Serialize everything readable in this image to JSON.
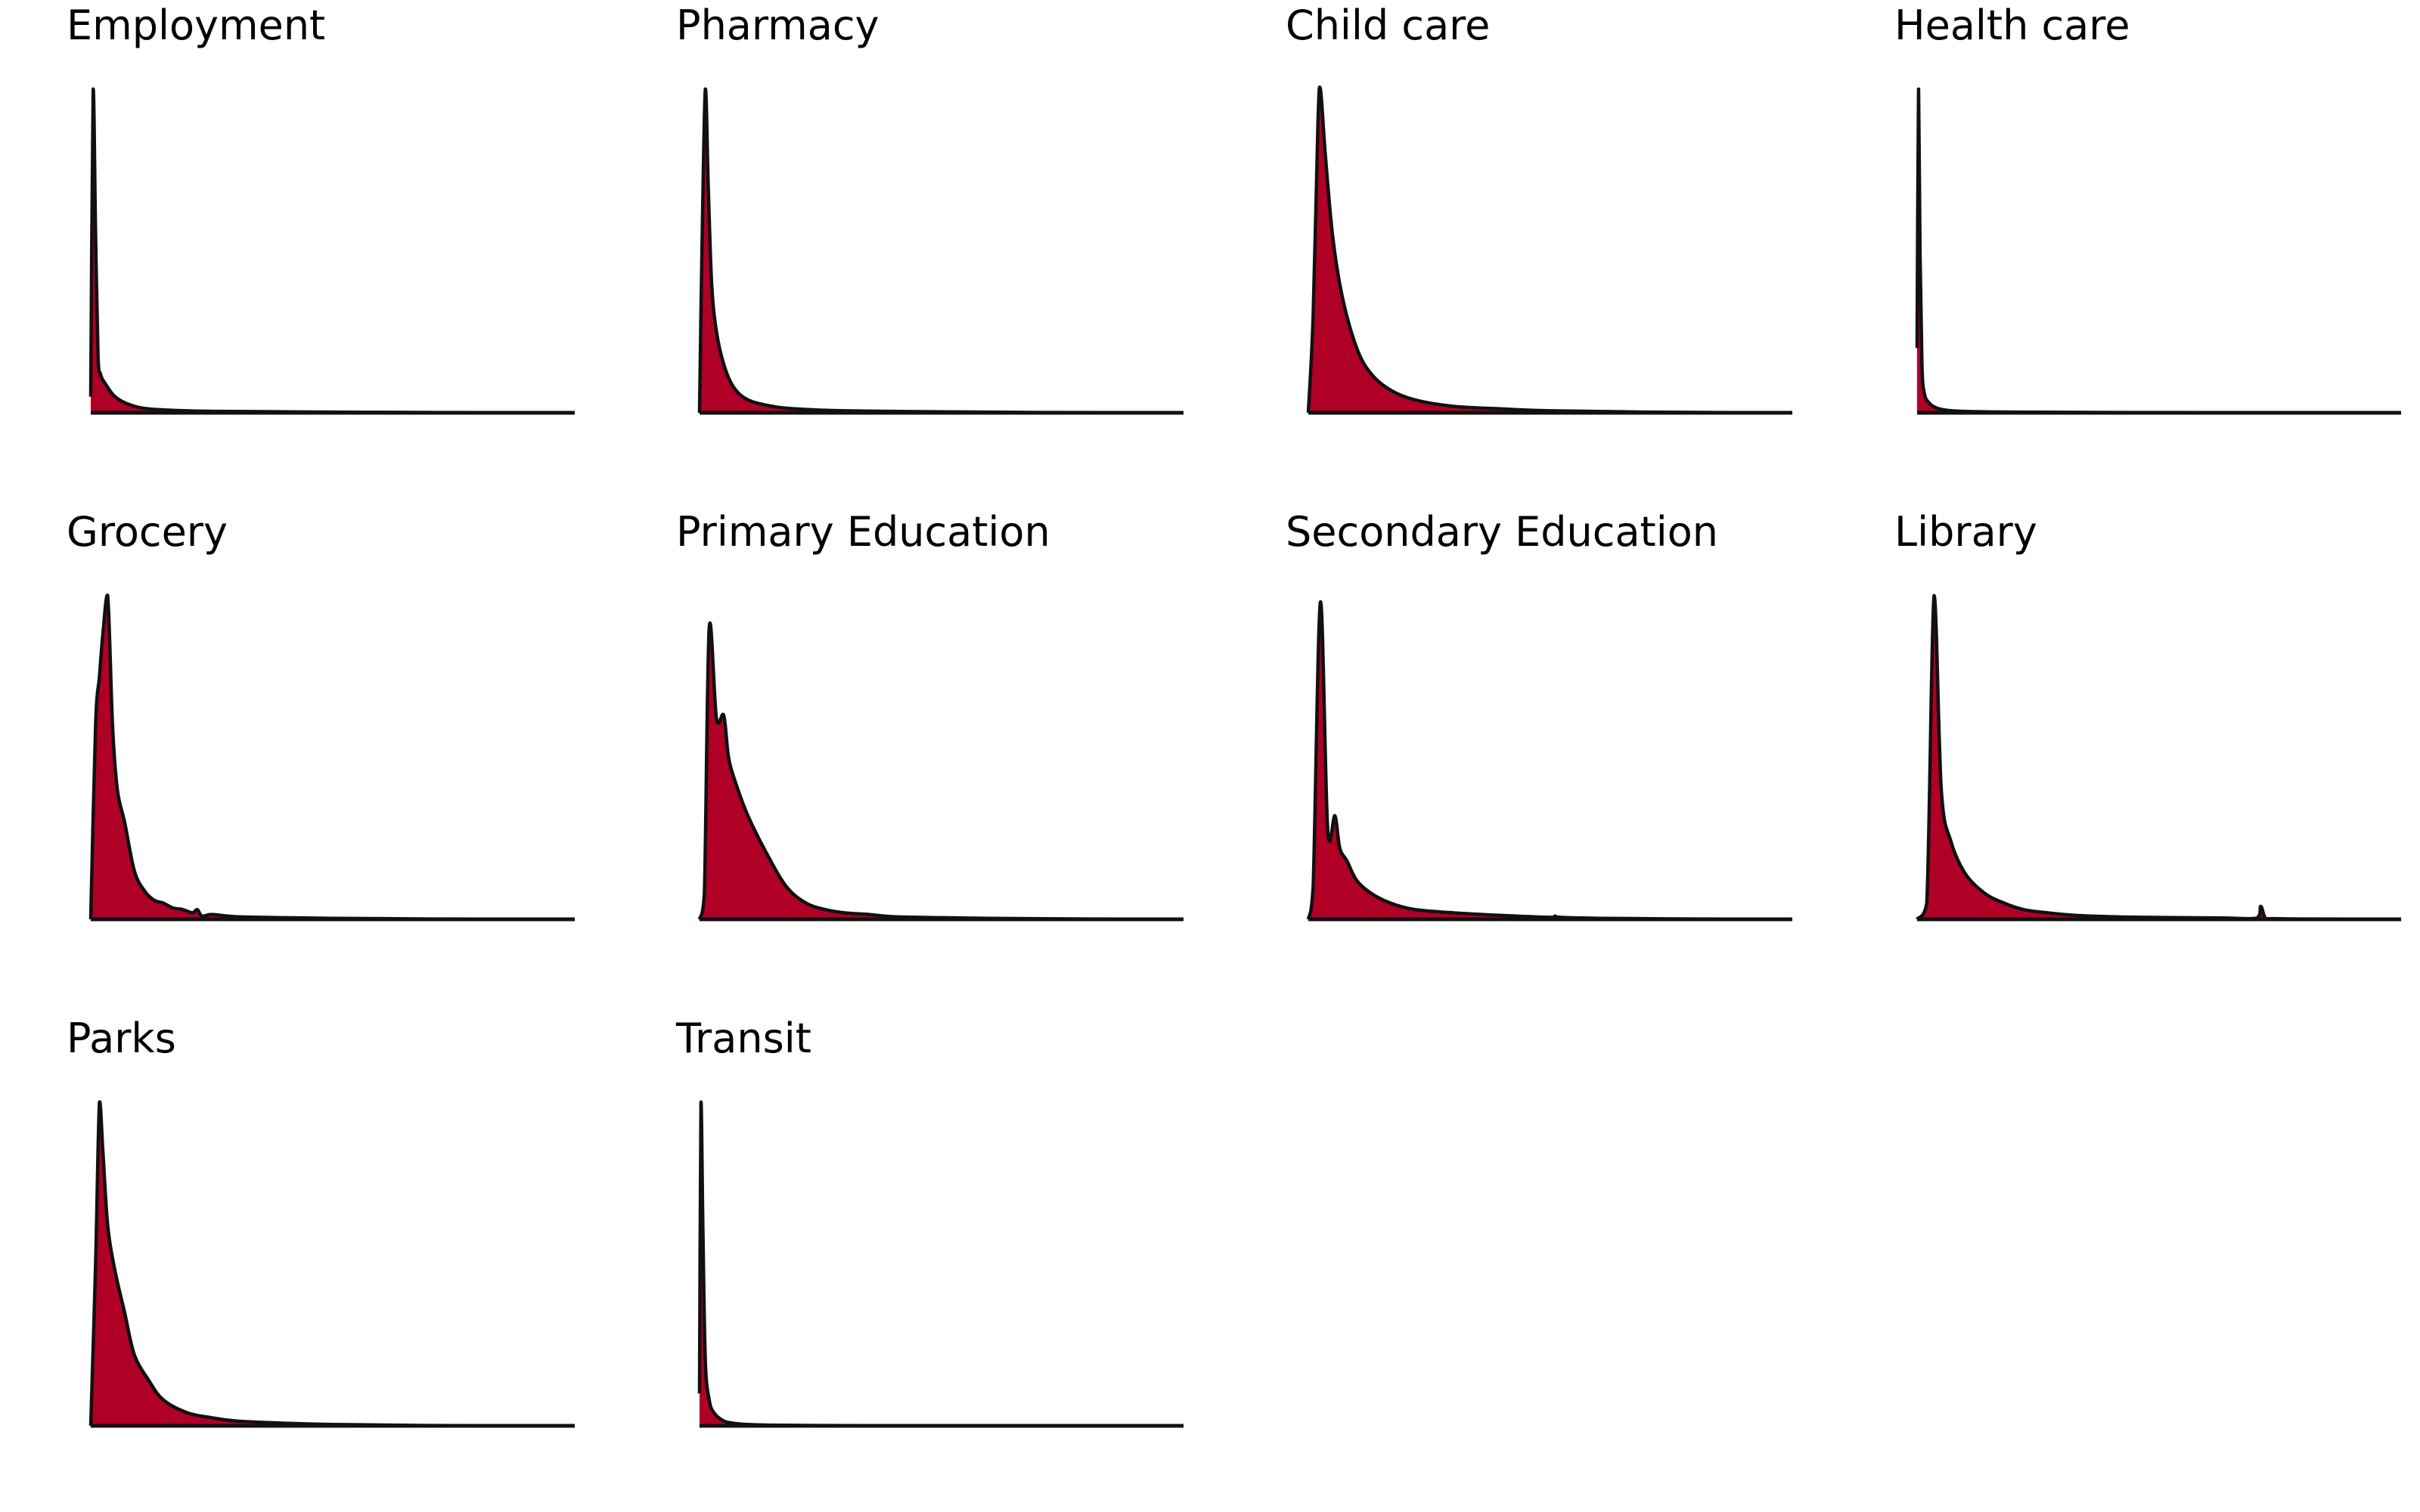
{
  "figure": {
    "fill_color": "#b00026",
    "line_color": "#111111"
  },
  "chart_data": [
    {
      "type": "area",
      "title": "Employment",
      "grid": false,
      "x_range": [
        0,
        1
      ],
      "y_range": [
        0,
        1
      ],
      "x": [
        0,
        0.005,
        0.01,
        0.015,
        0.02,
        0.03,
        0.05,
        0.08,
        0.12,
        0.2,
        0.3,
        0.5,
        0.7,
        1.0
      ],
      "y": [
        0.05,
        1.0,
        0.55,
        0.18,
        0.12,
        0.09,
        0.05,
        0.025,
        0.012,
        0.006,
        0.004,
        0.002,
        0.001,
        0.0
      ]
    },
    {
      "type": "area",
      "title": "Pharmacy",
      "grid": false,
      "x_range": [
        0,
        1
      ],
      "y_range": [
        0,
        1
      ],
      "x": [
        0,
        0.005,
        0.012,
        0.018,
        0.025,
        0.035,
        0.05,
        0.07,
        0.1,
        0.15,
        0.2,
        0.3,
        0.5,
        0.7,
        1.0
      ],
      "y": [
        0.0,
        0.5,
        1.0,
        0.7,
        0.4,
        0.25,
        0.15,
        0.08,
        0.04,
        0.02,
        0.012,
        0.006,
        0.003,
        0.001,
        0.0
      ]
    },
    {
      "type": "area",
      "title": "Child care",
      "grid": false,
      "x_range": [
        0,
        1
      ],
      "y_range": [
        0,
        1
      ],
      "x": [
        0,
        0.01,
        0.02,
        0.025,
        0.035,
        0.05,
        0.07,
        0.1,
        0.13,
        0.17,
        0.22,
        0.3,
        0.4,
        0.5,
        0.7,
        1.0
      ],
      "y": [
        0.0,
        0.3,
        0.9,
        1.0,
        0.8,
        0.55,
        0.36,
        0.2,
        0.12,
        0.07,
        0.04,
        0.02,
        0.012,
        0.006,
        0.002,
        0.0
      ]
    },
    {
      "type": "area",
      "title": "Health care",
      "grid": false,
      "x_range": [
        0,
        1
      ],
      "y_range": [
        0,
        1
      ],
      "x": [
        0,
        0.003,
        0.006,
        0.01,
        0.015,
        0.025,
        0.04,
        0.06,
        0.1,
        0.2,
        0.4,
        0.7,
        1.0
      ],
      "y": [
        0.2,
        1.0,
        0.5,
        0.15,
        0.06,
        0.03,
        0.015,
        0.008,
        0.004,
        0.002,
        0.001,
        0.0005,
        0.0
      ]
    },
    {
      "type": "area",
      "title": "Grocery",
      "grid": false,
      "x_range": [
        0,
        1
      ],
      "y_range": [
        0,
        1
      ],
      "x": [
        0,
        0.01,
        0.018,
        0.025,
        0.035,
        0.045,
        0.055,
        0.07,
        0.09,
        0.11,
        0.13,
        0.15,
        0.17,
        0.19,
        0.21,
        0.22,
        0.23,
        0.25,
        0.3,
        0.4,
        0.5,
        0.7,
        1.0
      ],
      "y": [
        0.0,
        0.6,
        0.75,
        0.88,
        1.0,
        0.6,
        0.4,
        0.3,
        0.15,
        0.09,
        0.06,
        0.05,
        0.035,
        0.03,
        0.02,
        0.03,
        0.01,
        0.015,
        0.008,
        0.005,
        0.003,
        0.001,
        0.0
      ]
    },
    {
      "type": "area",
      "title": "Primary Education",
      "grid": false,
      "x_range": [
        0,
        1
      ],
      "y_range": [
        0,
        1
      ],
      "x": [
        0,
        0.01,
        0.02,
        0.035,
        0.05,
        0.06,
        0.075,
        0.1,
        0.14,
        0.18,
        0.22,
        0.26,
        0.3,
        0.35,
        0.4,
        0.5,
        0.6,
        0.8,
        1.0
      ],
      "y": [
        0.0,
        0.08,
        0.9,
        0.62,
        0.63,
        0.5,
        0.42,
        0.32,
        0.2,
        0.1,
        0.05,
        0.03,
        0.02,
        0.015,
        0.008,
        0.005,
        0.003,
        0.001,
        0.0
      ]
    },
    {
      "type": "area",
      "title": "Secondary Education",
      "grid": false,
      "x_range": [
        0,
        1
      ],
      "y_range": [
        0,
        1
      ],
      "x": [
        0,
        0.01,
        0.025,
        0.04,
        0.055,
        0.065,
        0.08,
        0.1,
        0.13,
        0.17,
        0.22,
        0.3,
        0.4,
        0.5,
        0.51,
        0.52,
        0.6,
        0.8,
        1.0
      ],
      "y": [
        0.0,
        0.1,
        0.98,
        0.28,
        0.32,
        0.22,
        0.18,
        0.12,
        0.08,
        0.05,
        0.03,
        0.02,
        0.012,
        0.006,
        0.01,
        0.006,
        0.003,
        0.001,
        0.0
      ]
    },
    {
      "type": "area",
      "title": "Library",
      "grid": false,
      "x_range": [
        0,
        1
      ],
      "y_range": [
        0,
        1
      ],
      "x": [
        0,
        0.02,
        0.035,
        0.05,
        0.07,
        0.1,
        0.14,
        0.18,
        0.22,
        0.27,
        0.33,
        0.4,
        0.47,
        0.55,
        0.63,
        0.7,
        0.71,
        0.72,
        0.74,
        0.8,
        1.0
      ],
      "y": [
        0.0,
        0.05,
        1.0,
        0.4,
        0.24,
        0.14,
        0.08,
        0.05,
        0.03,
        0.02,
        0.012,
        0.008,
        0.006,
        0.005,
        0.004,
        0.003,
        0.04,
        0.003,
        0.002,
        0.001,
        0.0
      ]
    },
    {
      "type": "area",
      "title": "Parks",
      "grid": false,
      "x_range": [
        0,
        1
      ],
      "y_range": [
        0,
        1
      ],
      "x": [
        0,
        0.01,
        0.018,
        0.025,
        0.035,
        0.05,
        0.07,
        0.09,
        0.12,
        0.15,
        0.2,
        0.25,
        0.3,
        0.4,
        0.5,
        0.7,
        1.0
      ],
      "y": [
        0.0,
        0.5,
        1.0,
        0.85,
        0.62,
        0.48,
        0.35,
        0.22,
        0.14,
        0.08,
        0.04,
        0.025,
        0.015,
        0.008,
        0.004,
        0.001,
        0.0
      ]
    },
    {
      "type": "area",
      "title": "Transit",
      "grid": false,
      "x_range": [
        0,
        1
      ],
      "y_range": [
        0,
        1
      ],
      "x": [
        0,
        0.003,
        0.007,
        0.012,
        0.02,
        0.03,
        0.05,
        0.07,
        0.1,
        0.15,
        0.25,
        0.4,
        0.7,
        1.0
      ],
      "y": [
        0.1,
        1.0,
        0.6,
        0.2,
        0.08,
        0.04,
        0.015,
        0.008,
        0.004,
        0.002,
        0.001,
        0.0005,
        0.0002,
        0.0
      ]
    }
  ]
}
